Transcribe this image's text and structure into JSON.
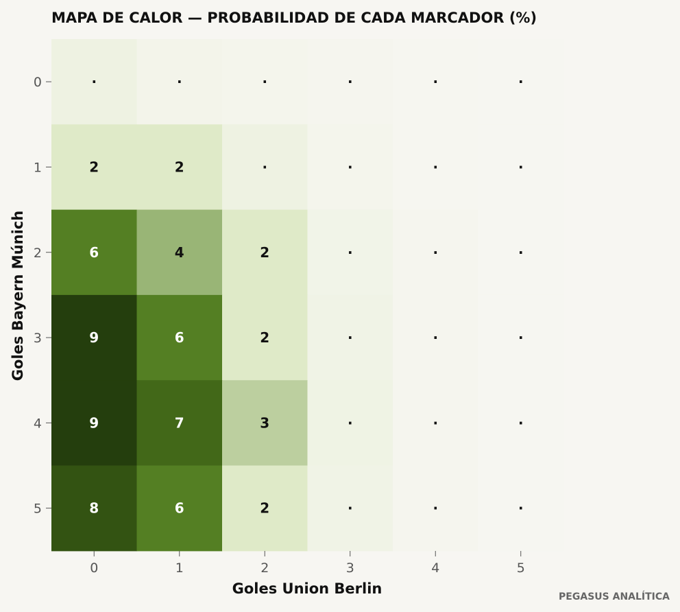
{
  "chart_data": {
    "type": "heatmap",
    "title": "MAPA DE CALOR — PROBABILIDAD DE CADA MARCADOR (%)",
    "xlabel": "Goles Union Berlin",
    "ylabel": "Goles Bayern Múnich",
    "x_categories": [
      "0",
      "1",
      "2",
      "3",
      "4",
      "5"
    ],
    "y_categories": [
      "0",
      "1",
      "2",
      "3",
      "4",
      "5"
    ],
    "values": [
      [
        0.8,
        0.4,
        0.3,
        0.2,
        0.1,
        0.05
      ],
      [
        2,
        2,
        0.8,
        0.3,
        0.1,
        0.05
      ],
      [
        6,
        4,
        2,
        0.5,
        0.2,
        0.05
      ],
      [
        9,
        6,
        2,
        0.6,
        0.2,
        0.05
      ],
      [
        9,
        7,
        3,
        0.7,
        0.2,
        0.05
      ],
      [
        8,
        6,
        2,
        0.6,
        0.2,
        0.05
      ]
    ],
    "labels": [
      [
        "·",
        "·",
        "·",
        "·",
        "·",
        "·"
      ],
      [
        "2",
        "2",
        "·",
        "·",
        "·",
        "·"
      ],
      [
        "6",
        "4",
        "2",
        "·",
        "·",
        "·"
      ],
      [
        "9",
        "6",
        "2",
        "·",
        "·",
        "·"
      ],
      [
        "9",
        "7",
        "3",
        "·",
        "·",
        "·"
      ],
      [
        "8",
        "6",
        "2",
        "·",
        "·",
        "·"
      ]
    ],
    "vmax": 9.5,
    "colors": {
      "low": "#f7f6f2",
      "mid_light": "#e2edcc",
      "mid": "#4e7a1c",
      "high": "#1c330a",
      "dark_text": "#111111",
      "light_text": "#ffffff"
    },
    "grid": false,
    "legend": "none"
  },
  "watermark": "PEGASUS ANALÍTICA"
}
